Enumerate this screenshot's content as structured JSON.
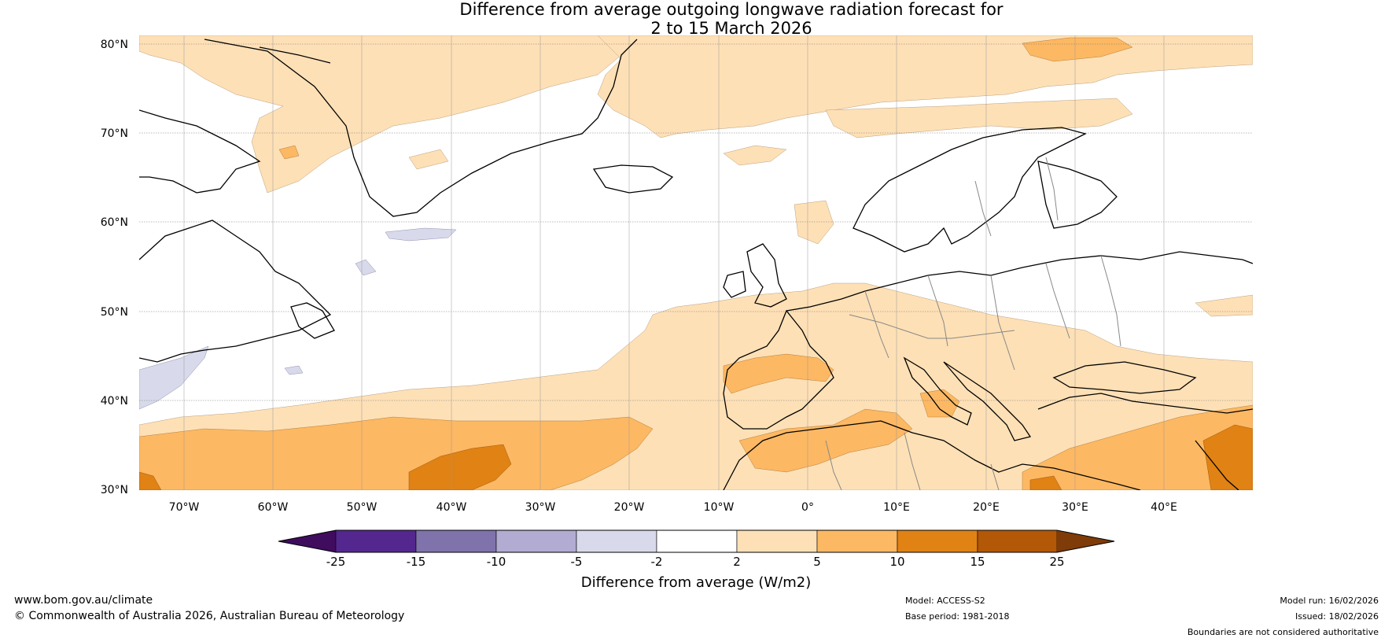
{
  "title": {
    "line1": "Difference from average outgoing longwave radiation forecast for",
    "line2": "2 to 15 March 2026"
  },
  "map": {
    "lat_labels": [
      "80°N",
      "70°N",
      "60°N",
      "50°N",
      "40°N",
      "30°N"
    ],
    "lon_labels": [
      "70°W",
      "60°W",
      "50°W",
      "40°W",
      "30°W",
      "20°W",
      "10°W",
      "0°",
      "10°E",
      "20°E",
      "30°E",
      "40°E"
    ],
    "extent": {
      "lon_min": -75,
      "lon_max": 50,
      "lat_min": 30,
      "lat_max": 81
    },
    "ocean_color": "#ffffff",
    "coast_color": "#000000",
    "border_color": "#888888"
  },
  "colorbar": {
    "title": "Difference from average (W/m2)",
    "tick_labels": [
      "-25",
      "-15",
      "-10",
      "-5",
      "-2",
      "2",
      "5",
      "10",
      "15",
      "25"
    ],
    "colors": [
      "#3f0c5e",
      "#54278f",
      "#8073ac",
      "#b2abd2",
      "#d8daeb",
      "#ffffff",
      "#fee0b6",
      "#fdb863",
      "#e08214",
      "#b35806",
      "#7f3b08"
    ]
  },
  "footer": {
    "website": "www.bom.gov.au/climate",
    "copyright": "© Commonwealth of Australia 2026, Australian Bureau of Meteorology",
    "model": "Model: ACCESS-S2",
    "base_period": "Base period: 1981-2018",
    "model_run": "Model run: 16/02/2026",
    "issued": "Issued: 18/02/2026",
    "disclaimer": "Boundaries are not considered authoritative"
  }
}
